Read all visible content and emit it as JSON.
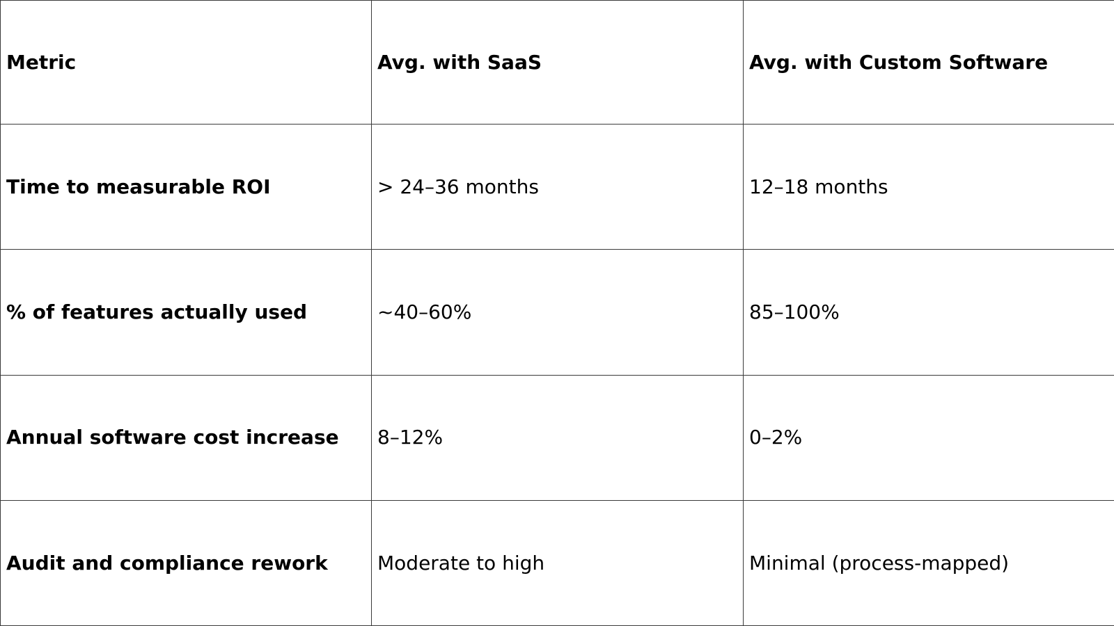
{
  "table": {
    "headers": [
      "Metric",
      "Avg. with SaaS",
      "Avg. with Custom Software"
    ],
    "rows": [
      [
        "Time to measurable ROI",
        "> 24–36 months",
        "12–18 months"
      ],
      [
        "% of features actually used",
        "~40–60%",
        "85–100%"
      ],
      [
        "Annual software cost increase",
        "8–12%",
        "0–2%"
      ],
      [
        "Audit and compliance rework",
        "Moderate to high",
        "Minimal (process-mapped)"
      ]
    ]
  }
}
